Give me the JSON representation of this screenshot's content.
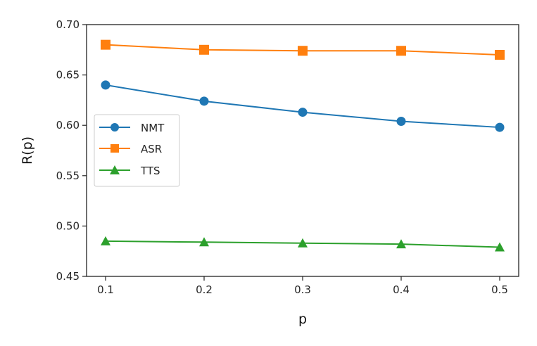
{
  "chart_data": {
    "type": "line",
    "title": "",
    "xlabel": "p",
    "ylabel": "R(p)",
    "x": [
      0.1,
      0.2,
      0.3,
      0.4,
      0.5
    ],
    "xticks": [
      "0.1",
      "0.2",
      "0.3",
      "0.4",
      "0.5"
    ],
    "yticks": [
      "0.45",
      "0.50",
      "0.55",
      "0.60",
      "0.65",
      "0.70"
    ],
    "xlim": [
      0.076,
      0.52
    ],
    "ylim": [
      0.45,
      0.7
    ],
    "grid": false,
    "legend_position": "center left",
    "series": [
      {
        "name": "NMT",
        "color": "#1f77b4",
        "marker": "circle",
        "values": [
          0.64,
          0.624,
          0.613,
          0.604,
          0.598
        ]
      },
      {
        "name": "ASR",
        "color": "#ff7f0e",
        "marker": "square",
        "values": [
          0.68,
          0.675,
          0.674,
          0.674,
          0.67
        ]
      },
      {
        "name": "TTS",
        "color": "#2ca02c",
        "marker": "triangle",
        "values": [
          0.485,
          0.484,
          0.483,
          0.482,
          0.479
        ]
      }
    ]
  }
}
